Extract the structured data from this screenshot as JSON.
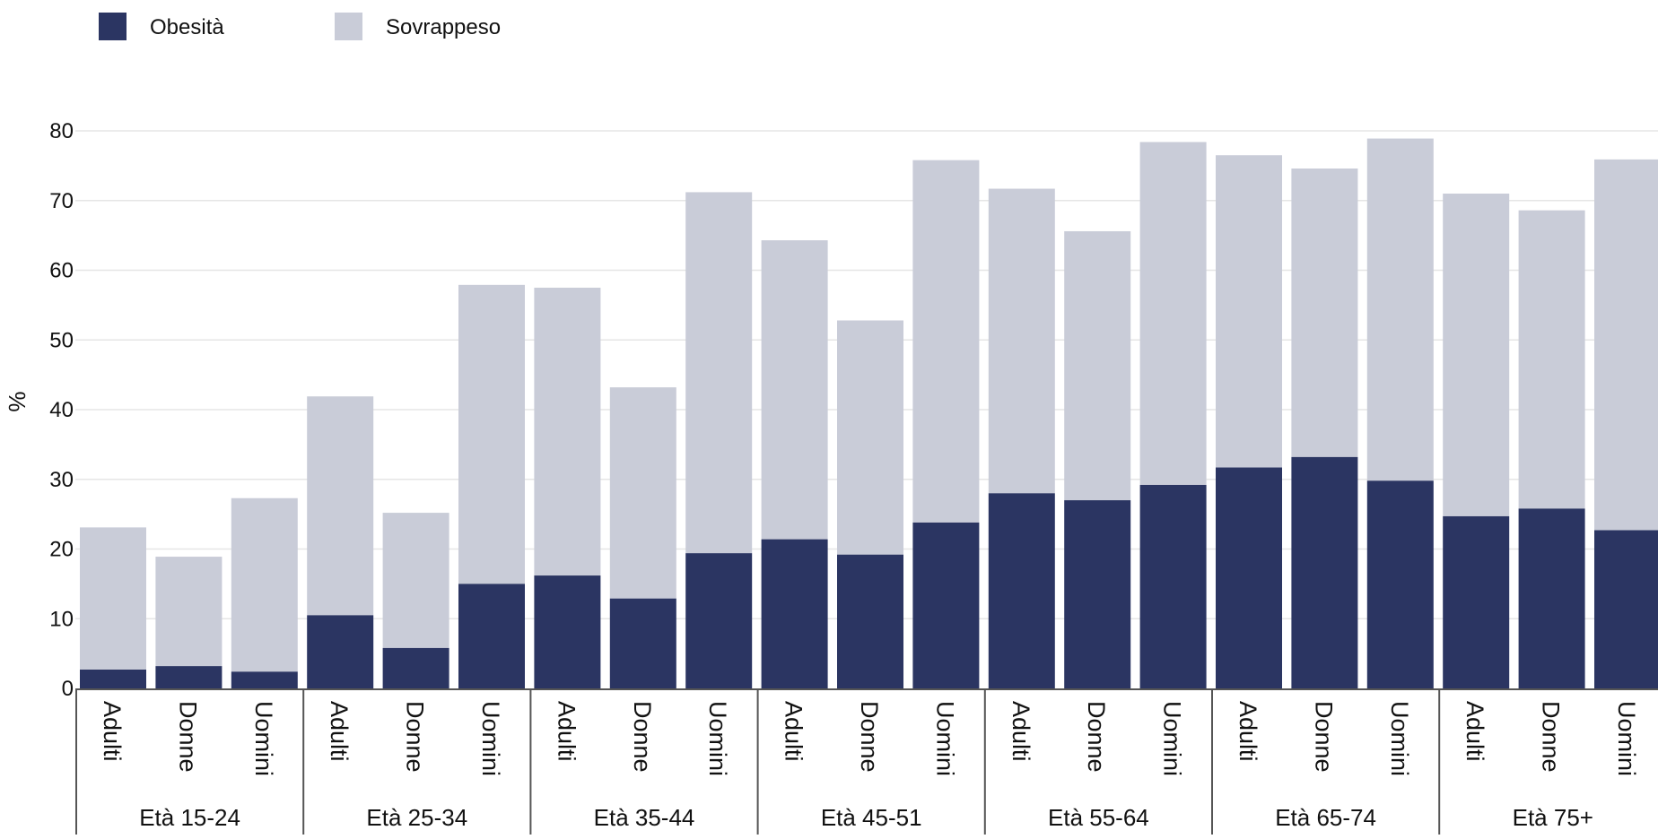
{
  "chart_data": {
    "type": "bar",
    "stacked": true,
    "ylabel": "%",
    "ylim": [
      0,
      80
    ],
    "yticks": [
      0,
      10,
      20,
      30,
      40,
      50,
      60,
      70,
      80
    ],
    "grid": true,
    "legend_position": "top-left",
    "groups": [
      "Età 15-24",
      "Età 25-34",
      "Età 35-44",
      "Età 45-51",
      "Età 55-64",
      "Età 65-74",
      "Età 75+"
    ],
    "subcategories": [
      "Adulti",
      "Donne",
      "Uomini"
    ],
    "categories": [
      "Età 15-24 Adulti",
      "Età 15-24 Donne",
      "Età 15-24 Uomini",
      "Età 25-34 Adulti",
      "Età 25-34 Donne",
      "Età 25-34 Uomini",
      "Età 35-44 Adulti",
      "Età 35-44 Donne",
      "Età 35-44 Uomini",
      "Età 45-51 Adulti",
      "Età 45-51 Donne",
      "Età 45-51 Uomini",
      "Età 55-64 Adulti",
      "Età 55-64 Donne",
      "Età 55-64 Uomini",
      "Età 65-74 Adulti",
      "Età 65-74 Donne",
      "Età 65-74 Uomini",
      "Età 75+ Adulti",
      "Età 75+ Donne",
      "Età 75+ Uomini"
    ],
    "series": [
      {
        "name": "Obesità",
        "color": "#2b3562",
        "values": [
          2.7,
          3.2,
          2.4,
          10.5,
          5.8,
          15.0,
          16.2,
          12.9,
          19.4,
          21.4,
          19.2,
          23.8,
          28.0,
          27.0,
          29.2,
          31.7,
          33.2,
          29.8,
          24.7,
          25.8,
          22.7
        ]
      },
      {
        "name": "Sovrappeso",
        "color": "#c9ccd8",
        "values": [
          20.4,
          15.7,
          24.9,
          31.4,
          19.4,
          42.9,
          41.3,
          30.3,
          51.8,
          42.9,
          33.6,
          52.0,
          43.7,
          38.6,
          49.2,
          44.8,
          41.4,
          49.1,
          46.3,
          42.8,
          53.2
        ]
      }
    ]
  }
}
